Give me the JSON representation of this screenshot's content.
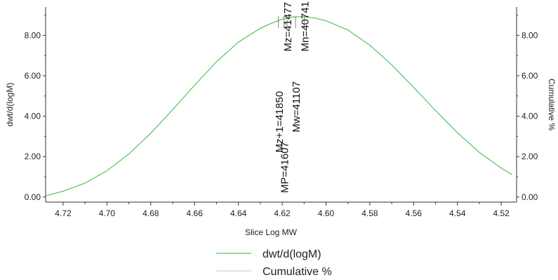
{
  "chart_data": {
    "type": "line",
    "xlabel": "Slice Log MW",
    "ylabel": "dwt/d(logM)",
    "ylabel_right": "Cumulative %",
    "x_reversed": true,
    "xlim": [
      4.728,
      4.513
    ],
    "ylim": [
      -0.25,
      9.4
    ],
    "xticks": [
      4.72,
      4.7,
      4.68,
      4.66,
      4.64,
      4.62,
      4.6,
      4.58,
      4.56,
      4.54,
      4.52
    ],
    "xtick_labels": [
      "4.72",
      "4.70",
      "4.68",
      "4.66",
      "4.64",
      "4.62",
      "4.60",
      "4.58",
      "4.56",
      "4.54",
      "4.52"
    ],
    "yticks": [
      0,
      2,
      4,
      6,
      8
    ],
    "ytick_labels": [
      "0.00",
      "2.00",
      "4.00",
      "6.00",
      "8.00"
    ],
    "ytick_labels_right": [
      "0.00",
      "2.00",
      "4.00",
      "6.00",
      "8.00"
    ],
    "grid": false,
    "legend_position": "bottom-center",
    "series": [
      {
        "name": "dwt/d(logM)",
        "color": "#5cc05c",
        "x": [
          4.728,
          4.72,
          4.71,
          4.7,
          4.69,
          4.68,
          4.67,
          4.66,
          4.65,
          4.64,
          4.63,
          4.625,
          4.62,
          4.615,
          4.61,
          4.605,
          4.6,
          4.59,
          4.58,
          4.57,
          4.56,
          4.55,
          4.54,
          4.53,
          4.52,
          4.515
        ],
        "values": [
          0.06,
          0.29,
          0.69,
          1.3,
          2.13,
          3.16,
          4.32,
          5.53,
          6.69,
          7.66,
          8.35,
          8.59,
          8.8,
          8.91,
          8.92,
          8.85,
          8.72,
          8.26,
          7.51,
          6.54,
          5.43,
          4.28,
          3.18,
          2.21,
          1.43,
          1.1
        ]
      },
      {
        "name": "Cumulative %",
        "color": "#cfcfcf",
        "x": [],
        "values": []
      }
    ],
    "annotations": [
      {
        "label": "Mz=41477",
        "x": 4.6178,
        "y": 7.2
      },
      {
        "label": "Mn=40741",
        "x": 4.61,
        "y": 7.2
      },
      {
        "label": "Mw=41107",
        "x": 4.6139,
        "y": 3.2
      },
      {
        "label": "Mz+1=41850",
        "x": 4.6217,
        "y": 2.2
      },
      {
        "label": "MP=41607",
        "x": 4.6192,
        "y": 0.2
      }
    ]
  }
}
